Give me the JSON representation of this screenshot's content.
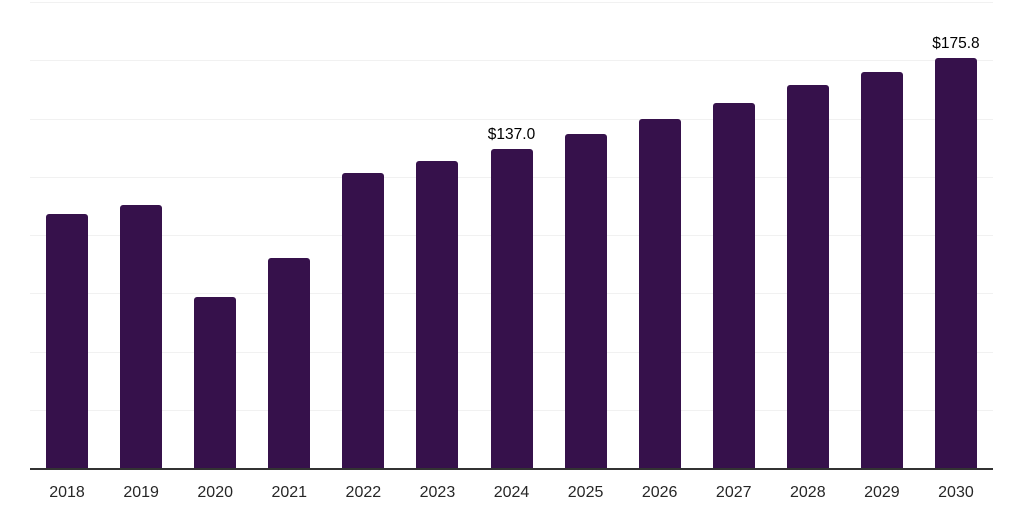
{
  "chart_data": {
    "type": "bar",
    "title": "",
    "xlabel": "",
    "ylabel": "",
    "categories": [
      "2018",
      "2019",
      "2020",
      "2021",
      "2022",
      "2023",
      "2024",
      "2025",
      "2026",
      "2027",
      "2028",
      "2029",
      "2030"
    ],
    "values": [
      109.0,
      113.0,
      73.4,
      90.0,
      126.5,
      131.6,
      137.0,
      143.3,
      149.7,
      156.8,
      164.5,
      170.0,
      175.8
    ],
    "value_prefix": "$",
    "ylim": [
      0,
      200
    ],
    "gridline_step": 25,
    "grid": "horizontal",
    "legend_position": "none",
    "y_axis_labels_visible": false,
    "annotations": [
      {
        "category": "2024",
        "text": "$137.0"
      },
      {
        "category": "2030",
        "text": "$175.8"
      }
    ]
  },
  "colors": {
    "bar": "#36114B",
    "gridline": "#f1f1f1",
    "axis_line": "#333333",
    "tick_label": "#262626",
    "value_label": "#000000",
    "background": "#ffffff"
  }
}
